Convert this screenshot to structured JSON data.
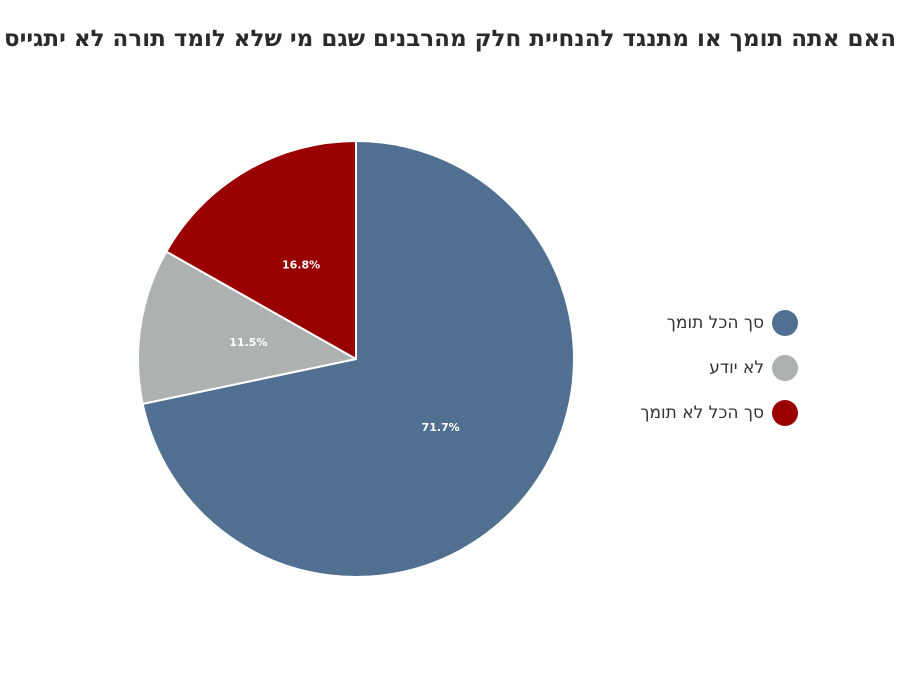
{
  "chart_data": {
    "type": "pie",
    "title": "האם אתה תומך או מתנגד להנחיית חלק מהרבנים שגם מי שלא לומד תורה לא יתגייס",
    "slices": [
      {
        "label": "סך הכל תומך",
        "value": 71.7,
        "value_label": "71.7%",
        "color": "#516f90"
      },
      {
        "label": "לא יודע",
        "value": 11.5,
        "value_label": "11.5%",
        "color": "#adb1b1"
      },
      {
        "label": "סך הכל לא תומך",
        "value": 16.8,
        "value_label": "16.8%",
        "color": "#990000"
      }
    ],
    "legend_position": "right",
    "start_angle": "12 o'clock",
    "direction": "clockwise"
  }
}
